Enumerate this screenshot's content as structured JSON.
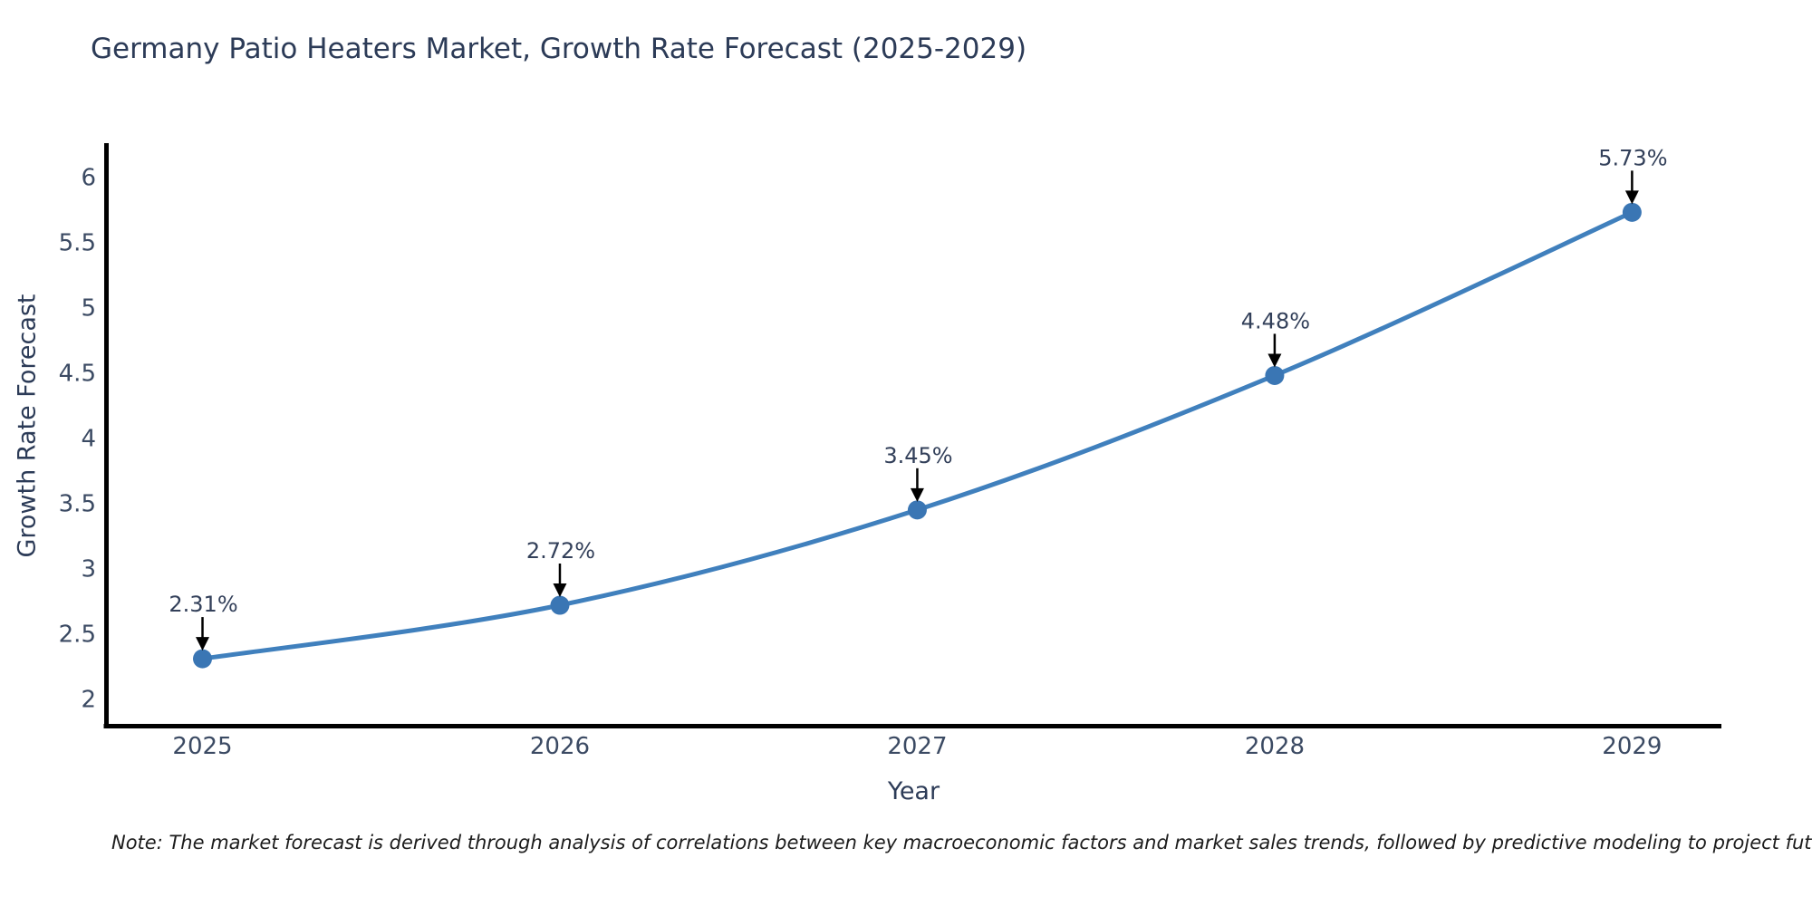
{
  "note": "Note: The market forecast is derived through analysis of correlations between key macroeconomic factors and market sales trends, followed by predictive modeling to project future sales",
  "chart_data": {
    "type": "line",
    "title": "Germany Patio Heaters Market, Growth Rate Forecast (2025-2029)",
    "xlabel": "Year",
    "ylabel": "Growth Rate Forecast",
    "x": [
      2025,
      2026,
      2027,
      2028,
      2029
    ],
    "y": [
      2.31,
      2.72,
      3.45,
      4.48,
      5.73
    ],
    "point_labels": [
      "2.31%",
      "2.72%",
      "3.45%",
      "4.48%",
      "5.73%"
    ],
    "xticks": [
      2025,
      2026,
      2027,
      2028,
      2029
    ],
    "xtick_labels": [
      "2025",
      "2026",
      "2027",
      "2028",
      "2029"
    ],
    "yticks": [
      2,
      2.5,
      3,
      3.5,
      4,
      4.5,
      5,
      5.5,
      6
    ],
    "ytick_labels": [
      "2",
      "2.5",
      "3",
      "3.5",
      "4",
      "4.5",
      "5",
      "5.5",
      "6"
    ],
    "xlim": [
      2024.73,
      2029.25
    ],
    "ylim": [
      1.79,
      6.26
    ],
    "grid": false,
    "legend": "none",
    "marker_shape": "circle",
    "annotation_arrows": true,
    "colors": {
      "line": "#4080bd",
      "marker": "#3a76b4",
      "axis_line": "#000000",
      "tick_text": "#3b4a63",
      "title_text": "#2c3b57",
      "label_text": "#33405a",
      "arrow": "#000000",
      "background": "#ffffff"
    }
  }
}
